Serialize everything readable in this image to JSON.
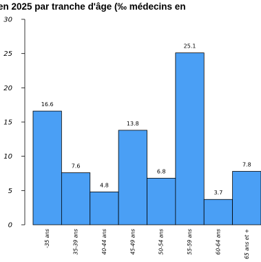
{
  "chart_data": {
    "type": "bar",
    "title": "en 2025 par tranche d'âge (‰ médecins en",
    "xlabel": "",
    "ylabel": "",
    "categories": [
      "-35 ans",
      "35-39 ans",
      "40-44 ans",
      "45-49 ans",
      "50-54 ans",
      "55-59 ans",
      "60-64 ans",
      "65 ans et +"
    ],
    "values": [
      16.6,
      7.6,
      4.8,
      13.8,
      6.8,
      25.1,
      3.7,
      7.8
    ],
    "value_labels": [
      "16.6",
      "7.6",
      "4.8",
      "13.8",
      "6.8",
      "25.1",
      "3.7",
      "7.8"
    ],
    "ylim": [
      0,
      30
    ],
    "yticks": [
      0,
      5,
      10,
      15,
      20,
      25,
      30
    ],
    "grid": false,
    "legend": "none",
    "bar_color": "#4a9ff5"
  }
}
